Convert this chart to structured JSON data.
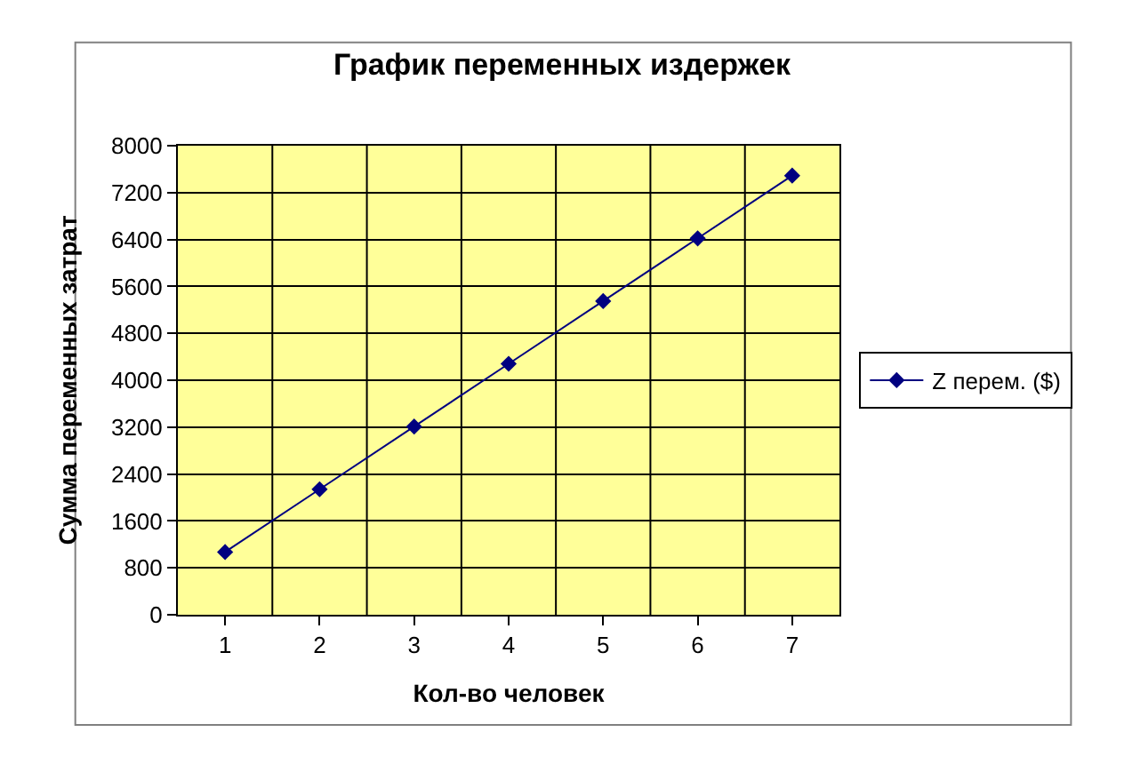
{
  "chart_data": {
    "type": "line",
    "title": "График переменных издержек",
    "xlabel": "Кол-во человек",
    "ylabel": "Сумма переменных затрат",
    "categories": [
      "1",
      "2",
      "3",
      "4",
      "5",
      "6",
      "7"
    ],
    "series": [
      {
        "name": "Z перем. ($)",
        "color": "#000080",
        "values": [
          1070,
          2140,
          3210,
          4280,
          5350,
          6420,
          7490
        ]
      }
    ],
    "ylim": [
      0,
      8000
    ],
    "yticks": [
      0,
      800,
      1600,
      2400,
      3200,
      4000,
      4800,
      5600,
      6400,
      7200,
      8000
    ],
    "grid": true,
    "legend": "right",
    "marker": "diamond",
    "line_style": "solid"
  }
}
